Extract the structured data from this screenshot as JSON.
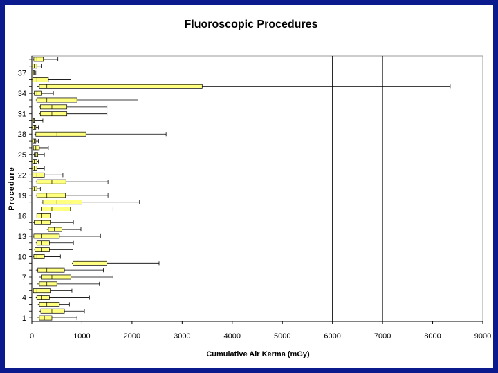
{
  "colors": {
    "background_border": "#0b1a8c",
    "box_fill": "#ffff80",
    "box_stroke": "#000000",
    "whisker": "#000000",
    "reference_line": "#000000"
  },
  "chart_data": {
    "type": "box",
    "title": "Fluoroscopic Procedures",
    "xlabel": "Cumulative Air Kerma (mGy)",
    "ylabel": "Procedure",
    "xlim": [
      0,
      9000
    ],
    "ylim": [
      0,
      39
    ],
    "x_ticks": [
      "0",
      "1000",
      "2000",
      "3000",
      "4000",
      "5000",
      "6000",
      "7000",
      "8000",
      "9000"
    ],
    "x_tick_values": [
      0,
      1000,
      2000,
      3000,
      4000,
      5000,
      6000,
      7000,
      8000,
      9000
    ],
    "y_ticks": [
      "1",
      "4",
      "7",
      "10",
      "13",
      "16",
      "19",
      "22",
      "25",
      "28",
      "31",
      "34",
      "37"
    ],
    "y_tick_values": [
      1,
      4,
      7,
      10,
      13,
      16,
      19,
      22,
      25,
      28,
      31,
      34,
      37
    ],
    "reference_lines_x": [
      6000,
      7000
    ],
    "legend": "none",
    "grid": false,
    "procedures": [
      {
        "procedure": 1,
        "whisker_low": 100,
        "q1": 150,
        "median": 250,
        "q3": 400,
        "whisker_high": 900
      },
      {
        "procedure": 2,
        "whisker_low": 150,
        "q1": 180,
        "median": 400,
        "q3": 650,
        "whisker_high": 1050
      },
      {
        "procedure": 3,
        "whisker_low": 120,
        "q1": 150,
        "median": 300,
        "q3": 550,
        "whisker_high": 750
      },
      {
        "procedure": 4,
        "whisker_low": 80,
        "q1": 100,
        "median": 200,
        "q3": 350,
        "whisker_high": 1150
      },
      {
        "procedure": 5,
        "whisker_low": 20,
        "q1": 30,
        "median": 100,
        "q3": 380,
        "whisker_high": 800
      },
      {
        "procedure": 6,
        "whisker_low": 100,
        "q1": 150,
        "median": 300,
        "q3": 500,
        "whisker_high": 1350
      },
      {
        "procedure": 7,
        "whisker_low": 150,
        "q1": 200,
        "median": 400,
        "q3": 780,
        "whisker_high": 1620
      },
      {
        "procedure": 8,
        "whisker_low": 80,
        "q1": 120,
        "median": 300,
        "q3": 650,
        "whisker_high": 1430
      },
      {
        "procedure": 9,
        "whisker_low": 800,
        "q1": 820,
        "median": 1000,
        "q3": 1500,
        "whisker_high": 2540
      },
      {
        "procedure": 10,
        "whisker_low": 30,
        "q1": 40,
        "median": 100,
        "q3": 250,
        "whisker_high": 570
      },
      {
        "procedure": 11,
        "whisker_low": 50,
        "q1": 60,
        "median": 200,
        "q3": 350,
        "whisker_high": 820
      },
      {
        "procedure": 12,
        "whisker_low": 80,
        "q1": 100,
        "median": 200,
        "q3": 350,
        "whisker_high": 830
      },
      {
        "procedure": 13,
        "whisker_low": 30,
        "q1": 40,
        "median": 200,
        "q3": 550,
        "whisker_high": 1370
      },
      {
        "procedure": 14,
        "whisker_low": 300,
        "q1": 330,
        "median": 450,
        "q3": 600,
        "whisker_high": 980
      },
      {
        "procedure": 15,
        "whisker_low": 20,
        "q1": 50,
        "median": 200,
        "q3": 380,
        "whisker_high": 830
      },
      {
        "procedure": 16,
        "whisker_low": 70,
        "q1": 100,
        "median": 200,
        "q3": 380,
        "whisker_high": 780
      },
      {
        "procedure": 17,
        "whisker_low": 180,
        "q1": 200,
        "median": 400,
        "q3": 770,
        "whisker_high": 1620
      },
      {
        "procedure": 18,
        "whisker_low": 200,
        "q1": 220,
        "median": 500,
        "q3": 1000,
        "whisker_high": 2150
      },
      {
        "procedure": 19,
        "whisker_low": 80,
        "q1": 100,
        "median": 300,
        "q3": 670,
        "whisker_high": 1520
      },
      {
        "procedure": 20,
        "whisker_low": 10,
        "q1": 20,
        "median": 50,
        "q3": 100,
        "whisker_high": 170
      },
      {
        "procedure": 21,
        "whisker_low": 80,
        "q1": 100,
        "median": 400,
        "q3": 680,
        "whisker_high": 1520
      },
      {
        "procedure": 22,
        "whisker_low": 10,
        "q1": 20,
        "median": 100,
        "q3": 250,
        "whisker_high": 620
      },
      {
        "procedure": 23,
        "whisker_low": 10,
        "q1": 20,
        "median": 50,
        "q3": 100,
        "whisker_high": 250
      },
      {
        "procedure": 24,
        "whisker_low": 10,
        "q1": 20,
        "median": 50,
        "q3": 100,
        "whisker_high": 130
      },
      {
        "procedure": 25,
        "whisker_low": 20,
        "q1": 50,
        "median": 80,
        "q3": 120,
        "whisker_high": 250
      },
      {
        "procedure": 26,
        "whisker_low": 20,
        "q1": 30,
        "median": 80,
        "q3": 150,
        "whisker_high": 330
      },
      {
        "procedure": 27,
        "whisker_low": 10,
        "q1": 20,
        "median": 50,
        "q3": 80,
        "whisker_high": 130
      },
      {
        "procedure": 28,
        "whisker_low": 50,
        "q1": 80,
        "median": 500,
        "q3": 1080,
        "whisker_high": 2680
      },
      {
        "procedure": 29,
        "whisker_low": 10,
        "q1": 20,
        "median": 50,
        "q3": 80,
        "whisker_high": 130
      },
      {
        "procedure": 30,
        "whisker_low": 10,
        "q1": 20,
        "median": 30,
        "q3": 50,
        "whisker_high": 220
      },
      {
        "procedure": 31,
        "whisker_low": 150,
        "q1": 170,
        "median": 400,
        "q3": 700,
        "whisker_high": 1500
      },
      {
        "procedure": 32,
        "whisker_low": 150,
        "q1": 170,
        "median": 400,
        "q3": 700,
        "whisker_high": 1500
      },
      {
        "procedure": 33,
        "whisker_low": 80,
        "q1": 100,
        "median": 300,
        "q3": 900,
        "whisker_high": 2120
      },
      {
        "procedure": 34,
        "whisker_low": 20,
        "q1": 50,
        "median": 100,
        "q3": 200,
        "whisker_high": 430
      },
      {
        "procedure": 35,
        "whisker_low": 100,
        "q1": 150,
        "median": 300,
        "q3": 3400,
        "whisker_high": 8350
      },
      {
        "procedure": 36,
        "whisker_low": 10,
        "q1": 20,
        "median": 100,
        "q3": 330,
        "whisker_high": 780
      },
      {
        "procedure": 37,
        "whisker_low": 10,
        "q1": 20,
        "median": 30,
        "q3": 50,
        "whisker_high": 80
      },
      {
        "procedure": 38,
        "whisker_low": 10,
        "q1": 20,
        "median": 50,
        "q3": 100,
        "whisker_high": 200
      },
      {
        "procedure": 39,
        "whisker_low": 20,
        "q1": 40,
        "median": 100,
        "q3": 230,
        "whisker_high": 520
      }
    ]
  }
}
